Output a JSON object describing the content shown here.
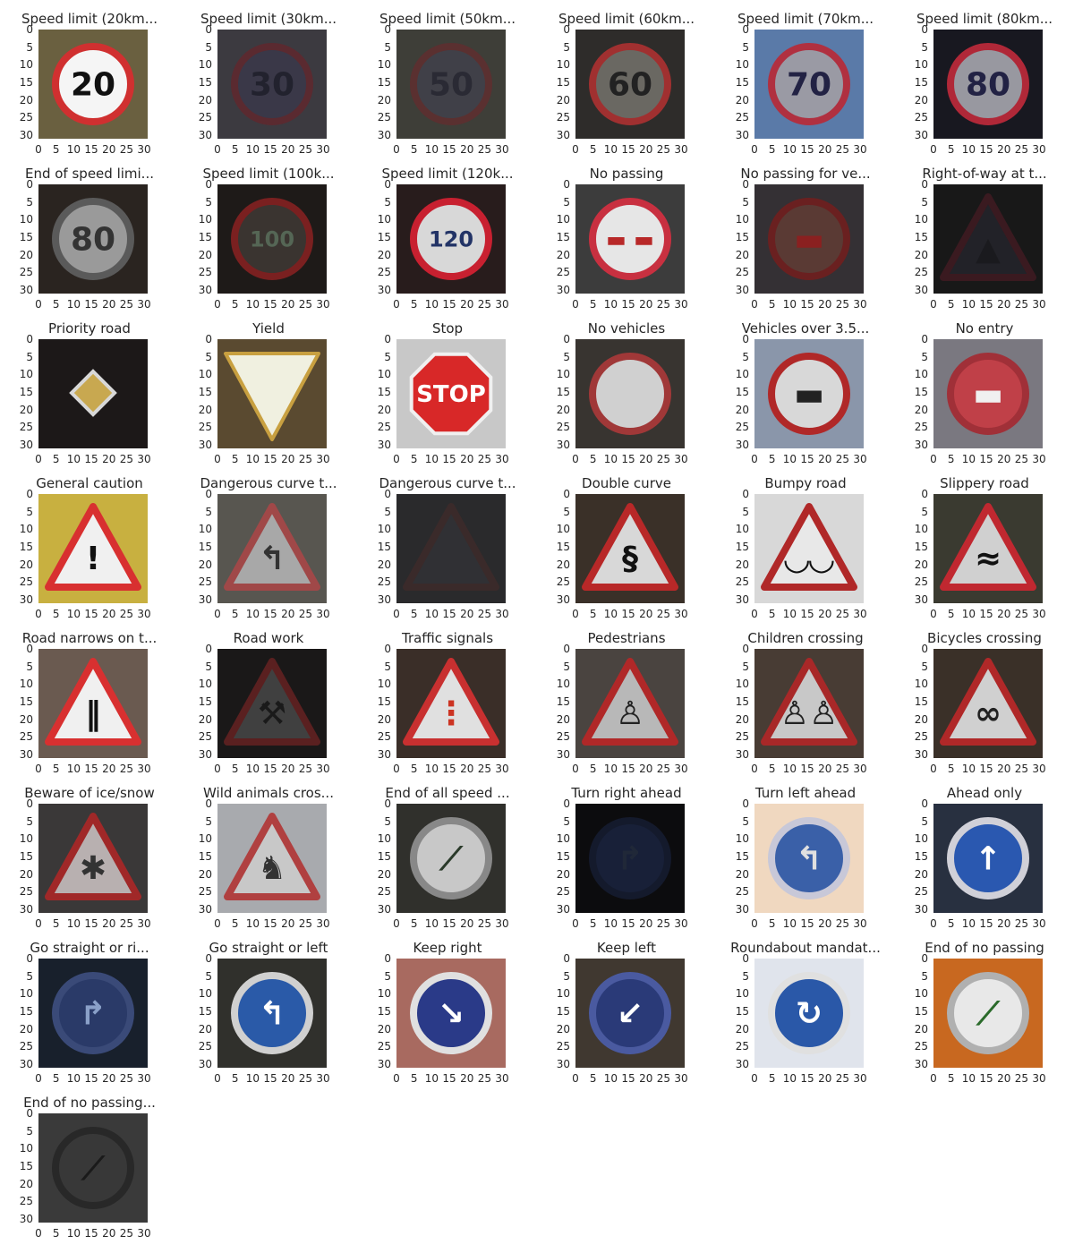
{
  "chart_data": {
    "type": "image-grid",
    "grid": {
      "columns": 6,
      "rows": 8
    },
    "xlim": [
      0,
      31
    ],
    "ylim": [
      31,
      0
    ],
    "xticks": [
      0,
      5,
      10,
      15,
      20,
      25,
      30
    ],
    "yticks": [
      0,
      5,
      10,
      15,
      20,
      25,
      30
    ],
    "grid_lines": false,
    "panels": [
      {
        "title": "Speed limit (20km...",
        "shape": "circle",
        "fill": "#f5f5f5",
        "rim": "#d03030",
        "symbol": "20",
        "symbol_color": "#111111",
        "bg": "#6a6040"
      },
      {
        "title": "Speed limit (30km...",
        "shape": "circle",
        "fill": "#3a3848",
        "rim": "#5a2a30",
        "symbol": "30",
        "symbol_color": "#22222e",
        "bg": "#3c3a40"
      },
      {
        "title": "Speed limit (50km...",
        "shape": "circle",
        "fill": "#404048",
        "rim": "#5a3030",
        "symbol": "50",
        "symbol_color": "#2a2a34",
        "bg": "#3e3e38"
      },
      {
        "title": "Speed limit (60km...",
        "shape": "circle",
        "fill": "#6a6862",
        "rim": "#a03030",
        "symbol": "60",
        "symbol_color": "#222222",
        "bg": "#2e2c2a"
      },
      {
        "title": "Speed limit (70km...",
        "shape": "circle",
        "fill": "#9a9aa4",
        "rim": "#b03040",
        "symbol": "70",
        "symbol_color": "#222244",
        "bg": "#5a7aa8"
      },
      {
        "title": "Speed limit (80km...",
        "shape": "circle",
        "fill": "#9898a0",
        "rim": "#b02838",
        "symbol": "80",
        "symbol_color": "#222244",
        "bg": "#181820"
      },
      {
        "title": "End of speed limi...",
        "shape": "circle",
        "fill": "#9a9a9a",
        "rim": "#5a5a5a",
        "symbol": "80",
        "symbol_color": "#333333",
        "bg": "#2a2420"
      },
      {
        "title": "Speed limit (100k...",
        "shape": "circle",
        "fill": "#3a3430",
        "rim": "#7a2020",
        "symbol": "100",
        "symbol_color": "#556655",
        "bg": "#1e1a18"
      },
      {
        "title": "Speed limit (120k...",
        "shape": "circle",
        "fill": "#d8d8d8",
        "rim": "#c82030",
        "symbol": "120",
        "symbol_color": "#223366",
        "bg": "#281c1c"
      },
      {
        "title": "No passing",
        "shape": "circle",
        "fill": "#e6e6e6",
        "rim": "#c83040",
        "symbol": "▬ ▬",
        "symbol_color": "#b82828",
        "bg": "#3c3c3c"
      },
      {
        "title": "No passing for ve...",
        "shape": "circle",
        "fill": "#5a3a34",
        "rim": "#6a2020",
        "symbol": "▬",
        "symbol_color": "#8a2020",
        "bg": "#343034"
      },
      {
        "title": "Right-of-way at t...",
        "shape": "triangle",
        "fill": "#222228",
        "rim": "#3a1a20",
        "symbol": "▲",
        "symbol_color": "#1a1a1e",
        "bg": "#181818"
      },
      {
        "title": "Priority road",
        "shape": "diamond",
        "fill": "#c8a850",
        "rim": "#d8d8d8",
        "symbol": "",
        "symbol_color": "#111111",
        "bg": "#1c1818"
      },
      {
        "title": "Yield",
        "shape": "invtriangle",
        "fill": "#f0f0e0",
        "rim": "#c8a040",
        "symbol": "",
        "symbol_color": "#111111",
        "bg": "#5a4a30"
      },
      {
        "title": "Stop",
        "shape": "octagon",
        "fill": "#d82828",
        "rim": "#f0f0f0",
        "symbol": "STOP",
        "symbol_color": "#ffffff",
        "bg": "#c8c8c8"
      },
      {
        "title": "No vehicles",
        "shape": "circle",
        "fill": "#d0d0d0",
        "rim": "#a03838",
        "symbol": "",
        "symbol_color": "#111111",
        "bg": "#383430"
      },
      {
        "title": "Vehicles over 3.5...",
        "shape": "circle",
        "fill": "#d8d8d8",
        "rim": "#b02828",
        "symbol": "▬",
        "symbol_color": "#222222",
        "bg": "#8a96aa"
      },
      {
        "title": "No entry",
        "shape": "circle",
        "fill": "#c04048",
        "rim": "#a03038",
        "symbol": "▬",
        "symbol_color": "#f0f0f0",
        "bg": "#7a7880"
      },
      {
        "title": "General caution",
        "shape": "triangle",
        "fill": "#f0f0f0",
        "rim": "#d83030",
        "symbol": "!",
        "symbol_color": "#111111",
        "bg": "#c8b040"
      },
      {
        "title": "Dangerous curve t...",
        "shape": "triangle",
        "fill": "#a8a8a8",
        "rim": "#a04848",
        "symbol": "↰",
        "symbol_color": "#333333",
        "bg": "#585650"
      },
      {
        "title": "Dangerous curve t...",
        "shape": "triangle",
        "fill": "#303034",
        "rim": "#3a2a2a",
        "symbol": "",
        "symbol_color": "#222222",
        "bg": "#2a2a2c"
      },
      {
        "title": "Double curve",
        "shape": "triangle",
        "fill": "#d8d8d8",
        "rim": "#b82828",
        "symbol": "§",
        "symbol_color": "#111111",
        "bg": "#3a3028"
      },
      {
        "title": "Bumpy road",
        "shape": "triangle",
        "fill": "#e8e8e8",
        "rim": "#b02828",
        "symbol": "◡◡",
        "symbol_color": "#111111",
        "bg": "#d8d8d8"
      },
      {
        "title": "Slippery road",
        "shape": "triangle",
        "fill": "#d0d0d0",
        "rim": "#c02830",
        "symbol": "≈",
        "symbol_color": "#111111",
        "bg": "#3a3a30"
      },
      {
        "title": "Road narrows on t...",
        "shape": "triangle",
        "fill": "#f0f0f0",
        "rim": "#d83030",
        "symbol": "‖",
        "symbol_color": "#111111",
        "bg": "#6a5a50"
      },
      {
        "title": "Road work",
        "shape": "triangle",
        "fill": "#404040",
        "rim": "#5a2020",
        "symbol": "⚒",
        "symbol_color": "#1a1a1a",
        "bg": "#1a1818"
      },
      {
        "title": "Traffic signals",
        "shape": "triangle",
        "fill": "#e0e0e0",
        "rim": "#c83030",
        "symbol": "⋮",
        "symbol_color": "#cc3322",
        "bg": "#3a2e28"
      },
      {
        "title": "Pedestrians",
        "shape": "triangle",
        "fill": "#b8b8b8",
        "rim": "#b02828",
        "symbol": "♙",
        "symbol_color": "#222222",
        "bg": "#4a4440"
      },
      {
        "title": "Children crossing",
        "shape": "triangle",
        "fill": "#c8c8c8",
        "rim": "#a82828",
        "symbol": "♙♙",
        "symbol_color": "#222222",
        "bg": "#483c34"
      },
      {
        "title": "Bicycles crossing",
        "shape": "triangle",
        "fill": "#d0d0d0",
        "rim": "#b02828",
        "symbol": "∞",
        "symbol_color": "#222222",
        "bg": "#3a3028"
      },
      {
        "title": "Beware of ice/snow",
        "shape": "triangle",
        "fill": "#b8b0b0",
        "rim": "#a02828",
        "symbol": "✱",
        "symbol_color": "#333333",
        "bg": "#3a3838"
      },
      {
        "title": "Wild animals cros...",
        "shape": "triangle",
        "fill": "#c8c8c8",
        "rim": "#b04040",
        "symbol": "♞",
        "symbol_color": "#333333",
        "bg": "#a8aaae"
      },
      {
        "title": "End of all speed ...",
        "shape": "circle",
        "fill": "#c8c8c8",
        "rim": "#888888",
        "symbol": "⟋",
        "symbol_color": "#2a3a2a",
        "bg": "#30302c"
      },
      {
        "title": "Turn right ahead",
        "shape": "circle",
        "fill": "#182038",
        "rim": "#141a2c",
        "symbol": "↱",
        "symbol_color": "#202838",
        "bg": "#0c0c0e"
      },
      {
        "title": "Turn left ahead",
        "shape": "circle",
        "fill": "#3a60a8",
        "rim": "#c8c8d8",
        "symbol": "↰",
        "symbol_color": "#e0e0e0",
        "bg": "#f0d8c0"
      },
      {
        "title": "Ahead only",
        "shape": "circle",
        "fill": "#2a58b0",
        "rim": "#d0d0d8",
        "symbol": "↑",
        "symbol_color": "#ffffff",
        "bg": "#283040"
      },
      {
        "title": "Go straight or ri...",
        "shape": "circle",
        "fill": "#2a3a68",
        "rim": "#3a4a78",
        "symbol": "↱",
        "symbol_color": "#8aa0c8",
        "bg": "#18202c"
      },
      {
        "title": "Go straight or left",
        "shape": "circle",
        "fill": "#2a5aa8",
        "rim": "#d0d0d0",
        "symbol": "↰",
        "symbol_color": "#ffffff",
        "bg": "#30302c"
      },
      {
        "title": "Keep right",
        "shape": "circle",
        "fill": "#2a3a88",
        "rim": "#e0e0e0",
        "symbol": "↘",
        "symbol_color": "#ffffff",
        "bg": "#a86a60"
      },
      {
        "title": "Keep left",
        "shape": "circle",
        "fill": "#2a3a78",
        "rim": "#4a5aa0",
        "symbol": "↙",
        "symbol_color": "#ffffff",
        "bg": "#403830"
      },
      {
        "title": "Roundabout mandat...",
        "shape": "circle",
        "fill": "#2a58a8",
        "rim": "#e0e0e0",
        "symbol": "↻",
        "symbol_color": "#ffffff",
        "bg": "#e0e4ec"
      },
      {
        "title": "End of no passing",
        "shape": "circle",
        "fill": "#e8e8e8",
        "rim": "#b0b0b0",
        "symbol": "⟋",
        "symbol_color": "#2a6a2a",
        "bg": "#c86820"
      },
      {
        "title": "End of no passing...",
        "shape": "circle",
        "fill": "#383838",
        "rim": "#282828",
        "symbol": "⟋",
        "symbol_color": "#1a1a1a",
        "bg": "#3a3a3a"
      }
    ]
  }
}
